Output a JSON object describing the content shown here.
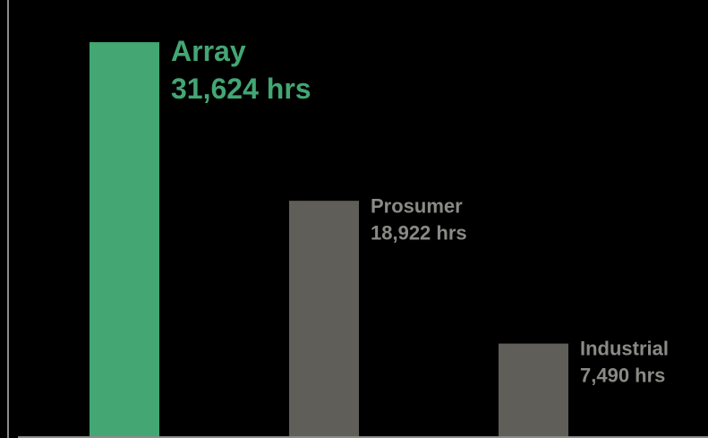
{
  "chart_data": {
    "type": "bar",
    "title": "",
    "xlabel": "",
    "ylabel": "",
    "ylim": [
      0,
      35000
    ],
    "grid": false,
    "legend": "none",
    "categories": [
      "Array",
      "Prosumer",
      "Industrial"
    ],
    "values": [
      31624,
      18922,
      7490
    ],
    "value_labels": [
      "31,624 hrs",
      "18,922 hrs",
      "7,490 hrs"
    ],
    "colors": [
      "#43a673",
      "#5f5e59",
      "#5f5e59"
    ],
    "label_colors": [
      "#43a673",
      "#8a8a86",
      "#8a8a86"
    ],
    "axis_color": "#8c8c8c",
    "background": "#000000"
  }
}
